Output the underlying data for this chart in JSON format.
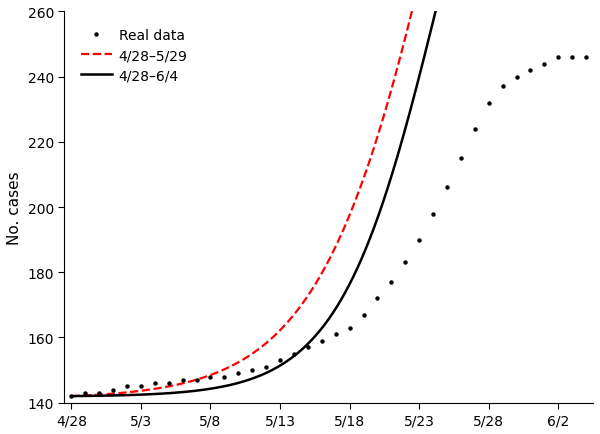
{
  "title": "",
  "ylabel": "No. cases",
  "xlabel": "",
  "ylim": [
    140,
    260
  ],
  "yticks": [
    140,
    160,
    180,
    200,
    220,
    240,
    260
  ],
  "xtick_labels": [
    "4/28",
    "5/3",
    "5/8",
    "5/13",
    "5/18",
    "5/23",
    "5/28",
    "6/2"
  ],
  "xtick_days": [
    0,
    5,
    10,
    15,
    20,
    25,
    30,
    35
  ],
  "legend_entries": [
    "Real data",
    "4/28–5/29",
    "4/28–6/4"
  ],
  "line_color_dashed": "#ff0000",
  "line_color_solid": "#000000",
  "dot_color": "#000000",
  "background_color": "#ffffff",
  "real_data_days": [
    0,
    1,
    2,
    3,
    4,
    5,
    6,
    7,
    8,
    9,
    10,
    11,
    12,
    13,
    14,
    15,
    16,
    17,
    18,
    19,
    20,
    21,
    22,
    23,
    24,
    25,
    26,
    27,
    28,
    29,
    30,
    31,
    32,
    33,
    34,
    35,
    36,
    37
  ],
  "real_data_values": [
    142,
    143,
    143,
    144,
    145,
    145,
    146,
    146,
    147,
    147,
    148,
    148,
    149,
    150,
    151,
    153,
    155,
    157,
    159,
    161,
    163,
    167,
    172,
    177,
    183,
    190,
    198,
    206,
    215,
    224,
    232,
    237,
    240,
    242,
    244,
    246,
    246,
    246
  ],
  "full_K": 247.5,
  "full_r": 0.28,
  "full_ti": 26.5,
  "full_p": 1.0,
  "full_baseline": 142.0,
  "part_K": 350.0,
  "part_r": 0.22,
  "part_ti": 27.5,
  "part_p": 1.0,
  "part_baseline": 142.0,
  "xlim": [
    -0.5,
    37.5
  ]
}
